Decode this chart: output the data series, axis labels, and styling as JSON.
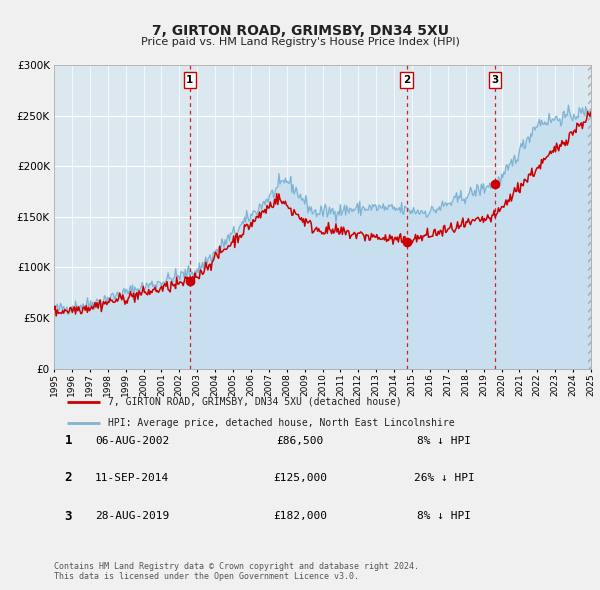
{
  "title": "7, GIRTON ROAD, GRIMSBY, DN34 5XU",
  "subtitle": "Price paid vs. HM Land Registry's House Price Index (HPI)",
  "legend_line1": "7, GIRTON ROAD, GRIMSBY, DN34 5XU (detached house)",
  "legend_line2": "HPI: Average price, detached house, North East Lincolnshire",
  "price_color": "#cc0000",
  "hpi_color": "#7fb3d3",
  "hpi_fill_color": "#c8dff0",
  "sale_color": "#cc0000",
  "vline_color": "#cc0000",
  "background_color": "#f0f0f0",
  "plot_bg_color": "#dce8f0",
  "grid_color": "#ffffff",
  "ylim": [
    0,
    300000
  ],
  "yticks": [
    0,
    50000,
    100000,
    150000,
    200000,
    250000,
    300000
  ],
  "transactions": [
    {
      "label": "1",
      "date_str": "06-AUG-2002",
      "date_num": 2002.59,
      "price": 86500,
      "pct": "8%",
      "dir": "↓"
    },
    {
      "label": "2",
      "date_str": "11-SEP-2014",
      "date_num": 2014.7,
      "price": 125000,
      "pct": "26%",
      "dir": "↓"
    },
    {
      "label": "3",
      "date_str": "28-AUG-2019",
      "date_num": 2019.65,
      "price": 182000,
      "pct": "8%",
      "dir": "↓"
    }
  ],
  "footer_line1": "Contains HM Land Registry data © Crown copyright and database right 2024.",
  "footer_line2": "This data is licensed under the Open Government Licence v3.0."
}
